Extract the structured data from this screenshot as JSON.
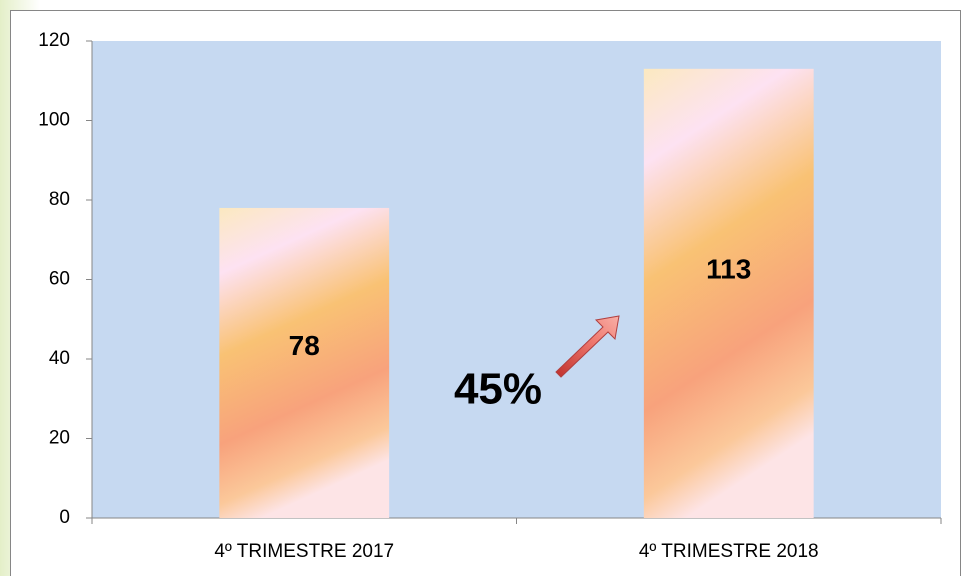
{
  "chart_data": {
    "type": "bar",
    "categories": [
      "4º TRIMESTRE 2017",
      "4º TRIMESTRE 2018"
    ],
    "values": [
      78,
      113
    ],
    "ylim": [
      0,
      120
    ],
    "yticks": [
      0,
      20,
      40,
      60,
      80,
      100,
      120
    ],
    "plot_background": "#c6d9f1",
    "annotation": "45%"
  }
}
